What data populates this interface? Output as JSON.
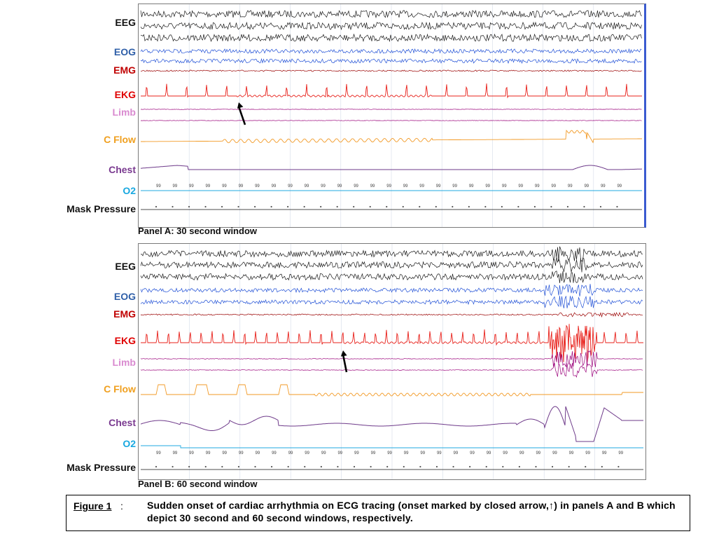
{
  "colors": {
    "EEG": "#1a1a1a",
    "EOG": "#1f4fd6",
    "EMG": "#9a0000",
    "EKG": "#e8201a",
    "Limb": "#9a007a",
    "C Flow": "#f29a26",
    "Chest": "#6e3a8a",
    "O2": "#1fa8e0",
    "Mask Pressure": "#111111"
  },
  "label_colors": {
    "EEG": "#111111",
    "EOG": "#2f5fa8",
    "EMG": "#c00000",
    "EKG": "#e00000",
    "Limb": "#d98ad0",
    "C Flow": "#f0a020",
    "Chest": "#7a3a90",
    "O2": "#19a8e0",
    "Mask Pressure": "#111111"
  },
  "chart_data": [
    {
      "type": "line",
      "panel": "A",
      "caption": "Panel A: 30 second window",
      "channels": [
        "EEG",
        "EOG",
        "EMG",
        "EKG",
        "Limb",
        "C Flow",
        "Chest",
        "O2",
        "Mask Pressure"
      ],
      "ekg_beat_count": 25,
      "arrow": "closed arrow marks onset of arrhythmia on EKG",
      "o2_readout": "99"
    },
    {
      "type": "line",
      "panel": "B",
      "caption": "Panel B: 60 second window",
      "channels": [
        "EEG",
        "EOG",
        "EMG",
        "EKG",
        "Limb",
        "C Flow",
        "Chest",
        "O2",
        "Mask Pressure"
      ],
      "ekg_beat_count": 46,
      "arrow": "closed arrow marks onset of arrhythmia on EKG",
      "o2_readout": "99"
    }
  ],
  "figure": {
    "label": "Figure 1",
    "colon": ":",
    "text": "Sudden onset of cardiac arrhythmia on ECG tracing (onset marked by closed arrow,↑) in panels A and B which depict 30 second and 60 second windows, respectively."
  }
}
